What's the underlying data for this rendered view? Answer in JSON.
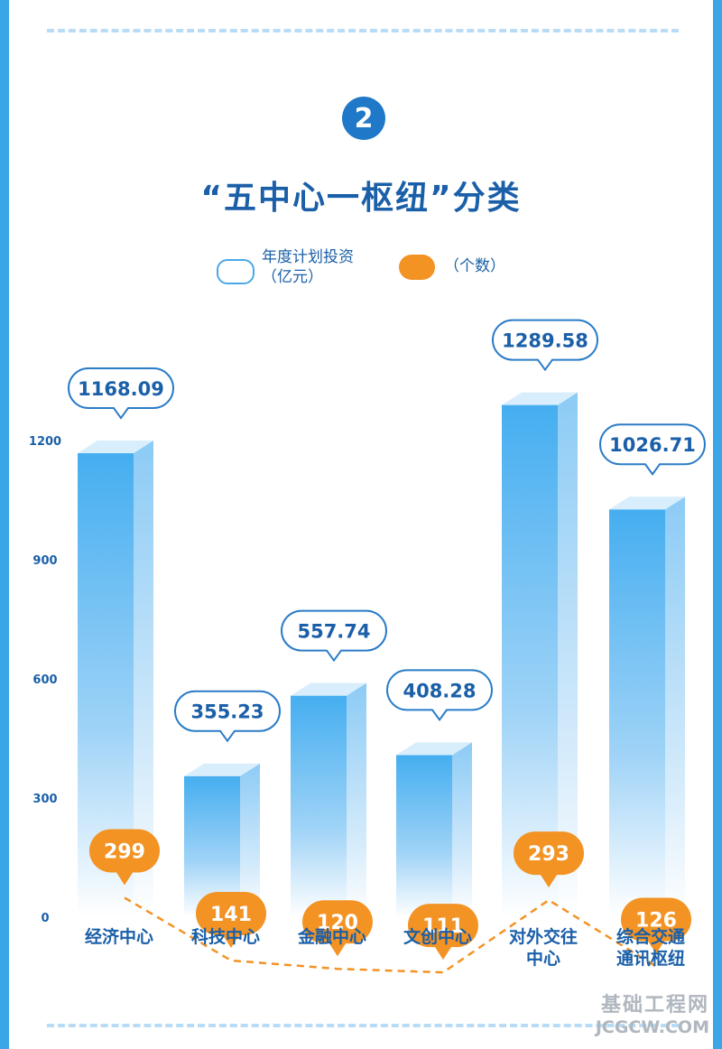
{
  "badge": "2",
  "title": "“五中心一枢纽”分类",
  "legend": {
    "investment_label_line1": "年度计划投资",
    "investment_label_line2": "（亿元）",
    "count_label": "（个数）"
  },
  "watermark": {
    "line1": "基础工程网",
    "line2": "JCGCW.COM"
  },
  "colors": {
    "bar": "#4db3f2",
    "accent": "#f39324",
    "text": "#1a5fa8"
  },
  "chart_data": {
    "type": "bar",
    "categories": [
      [
        "经济中心"
      ],
      [
        "科技中心"
      ],
      [
        "金融中心"
      ],
      [
        "文创中心"
      ],
      [
        "对外交往",
        "中心"
      ],
      [
        "综合交通",
        "通讯枢纽"
      ]
    ],
    "yticks": [
      "0",
      "300",
      "600",
      "900",
      "1200"
    ],
    "ylim": [
      0,
      1200
    ],
    "series": [
      {
        "name": "年度计划投资（亿元）",
        "type": "bar",
        "values": [
          1168.09,
          355.23,
          557.74,
          408.28,
          1289.58,
          1026.71
        ],
        "labels": [
          "1168.09",
          "355.23",
          "557.74",
          "408.28",
          "1289.58",
          "1026.71"
        ]
      },
      {
        "name": "（个数）",
        "type": "line",
        "values": [
          299,
          141,
          120,
          111,
          293,
          126
        ],
        "labels": [
          "299",
          "141",
          "120",
          "111",
          "293",
          "126"
        ]
      }
    ]
  }
}
